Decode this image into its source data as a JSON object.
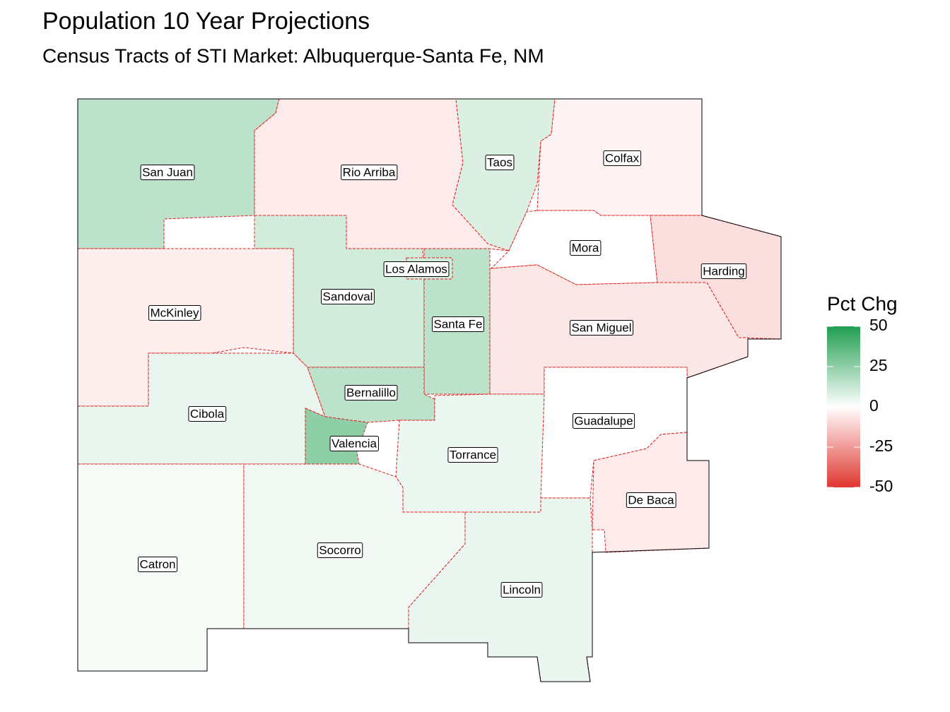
{
  "chart_data": {
    "type": "choropleth",
    "title": "Population 10 Year Projections",
    "subtitle": "Census Tracts of STI Market: Albuquerque-Santa Fe, NM",
    "legend_title": "Pct Chg",
    "color_low": "#e0362f",
    "color_mid": "#ffffff",
    "color_high": "#1f9e50",
    "limits": [
      -50,
      50
    ],
    "ticks": [
      50,
      25,
      0,
      -25,
      -50
    ],
    "regions": [
      {
        "name": "San Juan",
        "value": 15
      },
      {
        "name": "Rio Arriba",
        "value": -5
      },
      {
        "name": "Taos",
        "value": 8
      },
      {
        "name": "Colfax",
        "value": -3
      },
      {
        "name": "Mora",
        "value": 0
      },
      {
        "name": "Harding",
        "value": -8
      },
      {
        "name": "San Miguel",
        "value": -6
      },
      {
        "name": "Sandoval",
        "value": 10
      },
      {
        "name": "Santa Fe",
        "value": 15
      },
      {
        "name": "Los Alamos",
        "value": 10
      },
      {
        "name": "McKinley",
        "value": -4
      },
      {
        "name": "Cibola",
        "value": 5
      },
      {
        "name": "Bernalillo",
        "value": 15
      },
      {
        "name": "Valencia",
        "value": 25
      },
      {
        "name": "Torrance",
        "value": 4
      },
      {
        "name": "Guadalupe",
        "value": 0
      },
      {
        "name": "De Baca",
        "value": -5
      },
      {
        "name": "Catron",
        "value": 2
      },
      {
        "name": "Socorro",
        "value": 3
      },
      {
        "name": "Lincoln",
        "value": 5
      }
    ]
  }
}
